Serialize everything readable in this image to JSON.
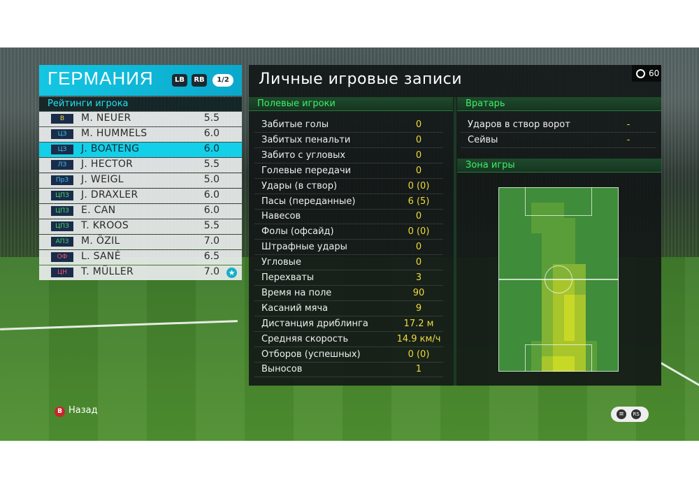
{
  "team": {
    "name": "ГЕРМАНИЯ",
    "lb_label": "LB",
    "rb_label": "RB",
    "page": "1/2"
  },
  "ratings": {
    "header": "Рейтинги игрока",
    "players": [
      {
        "pos": "В",
        "name": "M. NEUER",
        "rating": "5.5",
        "pos_color": "#f2d23a"
      },
      {
        "pos": "ЦЗ",
        "name": "M. HUMMELS",
        "rating": "6.0",
        "pos_color": "#3ec3f0"
      },
      {
        "pos": "ЦЗ",
        "name": "J. BOATENG",
        "rating": "6.0",
        "pos_color": "#3ec3f0"
      },
      {
        "pos": "ЛЗ",
        "name": "J. HECTOR",
        "rating": "5.5",
        "pos_color": "#3ec3f0"
      },
      {
        "pos": "ПрЗ",
        "name": "J. WEIGL",
        "rating": "5.0",
        "pos_color": "#3ec3f0"
      },
      {
        "pos": "ЦПЗ",
        "name": "J. DRAXLER",
        "rating": "6.0",
        "pos_color": "#47d96a"
      },
      {
        "pos": "ЦПЗ",
        "name": "E. CAN",
        "rating": "6.0",
        "pos_color": "#47d96a"
      },
      {
        "pos": "ЦПЗ",
        "name": "T. KROOS",
        "rating": "5.5",
        "pos_color": "#47d96a"
      },
      {
        "pos": "АПЗ",
        "name": "M. ÖZIL",
        "rating": "7.0",
        "pos_color": "#47d96a"
      },
      {
        "pos": "ОФ",
        "name": "L. SANÉ",
        "rating": "6.5",
        "pos_color": "#f0556e"
      },
      {
        "pos": "ЦН",
        "name": "T. MÜLLER",
        "rating": "7.0",
        "pos_color": "#f0556e"
      }
    ],
    "selected_index": 2,
    "star_index": 10
  },
  "records": {
    "title": "Личные игровые записи",
    "timer": "60",
    "field_header": "Полевые игроки",
    "field_stats": [
      {
        "label": "Забитые голы",
        "value": "0"
      },
      {
        "label": "Забитых пенальти",
        "value": "0"
      },
      {
        "label": "Забито с угловых",
        "value": "0"
      },
      {
        "label": "Голевые передачи",
        "value": "0"
      },
      {
        "label": "Удары (в створ)",
        "value": "0 (0)"
      },
      {
        "label": "Пасы (переданные)",
        "value": "6 (5)"
      },
      {
        "label": "Навесов",
        "value": "0"
      },
      {
        "label": "Фолы (офсайд)",
        "value": "0 (0)"
      },
      {
        "label": "Штрафные удары",
        "value": "0"
      },
      {
        "label": "Угловые",
        "value": "0"
      },
      {
        "label": "Перехваты",
        "value": "3"
      },
      {
        "label": "Время на поле",
        "value": "90"
      },
      {
        "label": "Касаний мяча",
        "value": "9"
      },
      {
        "label": "Дистанция дриблинга",
        "value": "17.2 м"
      },
      {
        "label": "Средняя скорость",
        "value": "14.9 км/ч"
      },
      {
        "label": "Отборов (успешных)",
        "value": "0 (0)"
      },
      {
        "label": "Выносов",
        "value": "1"
      }
    ],
    "gk_header": "Вратарь",
    "gk_stats": [
      {
        "label": "Ударов в створ ворот",
        "value": "-"
      },
      {
        "label": "Сейвы",
        "value": "-"
      }
    ],
    "zone_header": "Зона игры",
    "zone_intensity": [
      [
        0,
        0,
        0,
        0,
        0,
        0,
        0,
        0,
        0,
        0,
        0
      ],
      [
        0,
        0,
        0,
        1,
        1,
        1,
        0,
        0,
        0,
        0,
        0
      ],
      [
        0,
        0,
        0,
        1,
        1,
        1,
        1,
        0,
        0,
        0,
        0
      ],
      [
        0,
        0,
        0,
        0,
        1,
        1,
        1,
        0,
        0,
        0,
        0
      ],
      [
        0,
        0,
        0,
        0,
        1,
        1,
        1,
        0,
        0,
        0,
        0
      ],
      [
        0,
        0,
        0,
        0,
        1,
        2,
        2,
        2,
        0,
        0,
        0
      ],
      [
        0,
        0,
        0,
        0,
        2,
        3,
        3,
        2,
        0,
        0,
        0
      ],
      [
        0,
        0,
        0,
        0,
        2,
        3,
        4,
        3,
        0,
        0,
        0
      ],
      [
        0,
        0,
        0,
        0,
        2,
        3,
        4,
        3,
        0,
        0,
        0
      ],
      [
        0,
        0,
        0,
        0,
        2,
        3,
        4,
        3,
        0,
        0,
        0
      ],
      [
        0,
        0,
        0,
        1,
        2,
        3,
        3,
        3,
        1,
        0,
        0
      ],
      [
        0,
        0,
        0,
        1,
        3,
        4,
        4,
        3,
        1,
        0,
        0
      ]
    ]
  },
  "footer": {
    "back_label": "Назад",
    "b_button": "B",
    "rs_button": "RS"
  }
}
